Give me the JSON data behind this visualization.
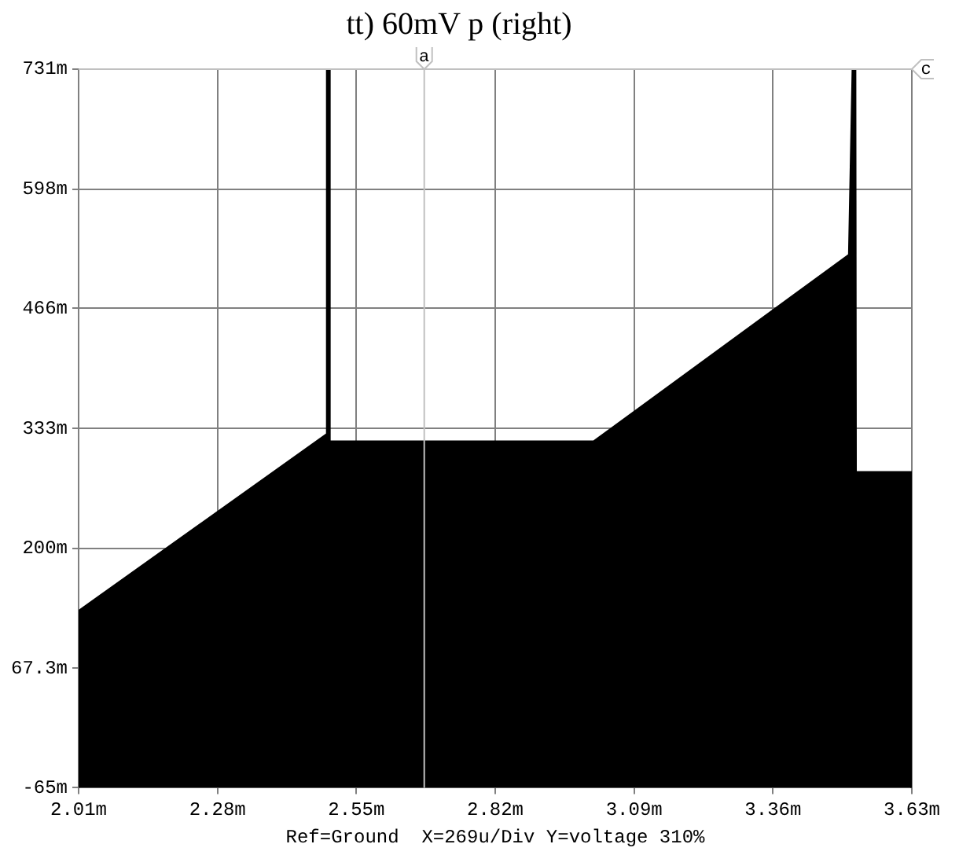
{
  "chart_data": {
    "type": "area",
    "title": "tt) 60mV p (right)",
    "xlabel": "Ref=Ground  X=269u/Div Y=voltage 310%",
    "x": [
      2.01,
      2.01,
      2.493,
      2.494,
      2.496,
      2.497,
      3.012,
      3.509,
      3.516,
      3.519,
      3.52,
      3.63,
      3.63
    ],
    "series": [
      {
        "color": "#000000",
        "values": [
          -65,
          130,
          326,
          731,
          731,
          318,
          318,
          525,
          731,
          731,
          284,
          284,
          -65
        ]
      }
    ],
    "xlim": [
      2.01,
      3.63
    ],
    "xticks": [
      {
        "value": 2.01,
        "label": "2.01m"
      },
      {
        "value": 2.28,
        "label": "2.28m"
      },
      {
        "value": 2.55,
        "label": "2.55m"
      },
      {
        "value": 2.82,
        "label": "2.82m"
      },
      {
        "value": 3.09,
        "label": "3.09m"
      },
      {
        "value": 3.36,
        "label": "3.36m"
      },
      {
        "value": 3.63,
        "label": "3.63m"
      }
    ],
    "ylim": [
      -65,
      731
    ],
    "yticks": [
      {
        "value": -65,
        "label": "-65m"
      },
      {
        "value": 67.3,
        "label": "67.3m"
      },
      {
        "value": 200,
        "label": "200m"
      },
      {
        "value": 333,
        "label": "333m"
      },
      {
        "value": 466,
        "label": "466m"
      },
      {
        "value": 598,
        "label": "598m"
      },
      {
        "value": 731,
        "label": "731m"
      }
    ],
    "ref_lines": [
      {
        "axis": "x",
        "value": 2.682,
        "label": "a",
        "color": "#c0c0c0"
      },
      {
        "axis": "y",
        "value": 731,
        "label": "c",
        "color": "#c0c0c0"
      }
    ],
    "grid": true,
    "legend": false,
    "marker": "none",
    "line_style": "solid"
  }
}
